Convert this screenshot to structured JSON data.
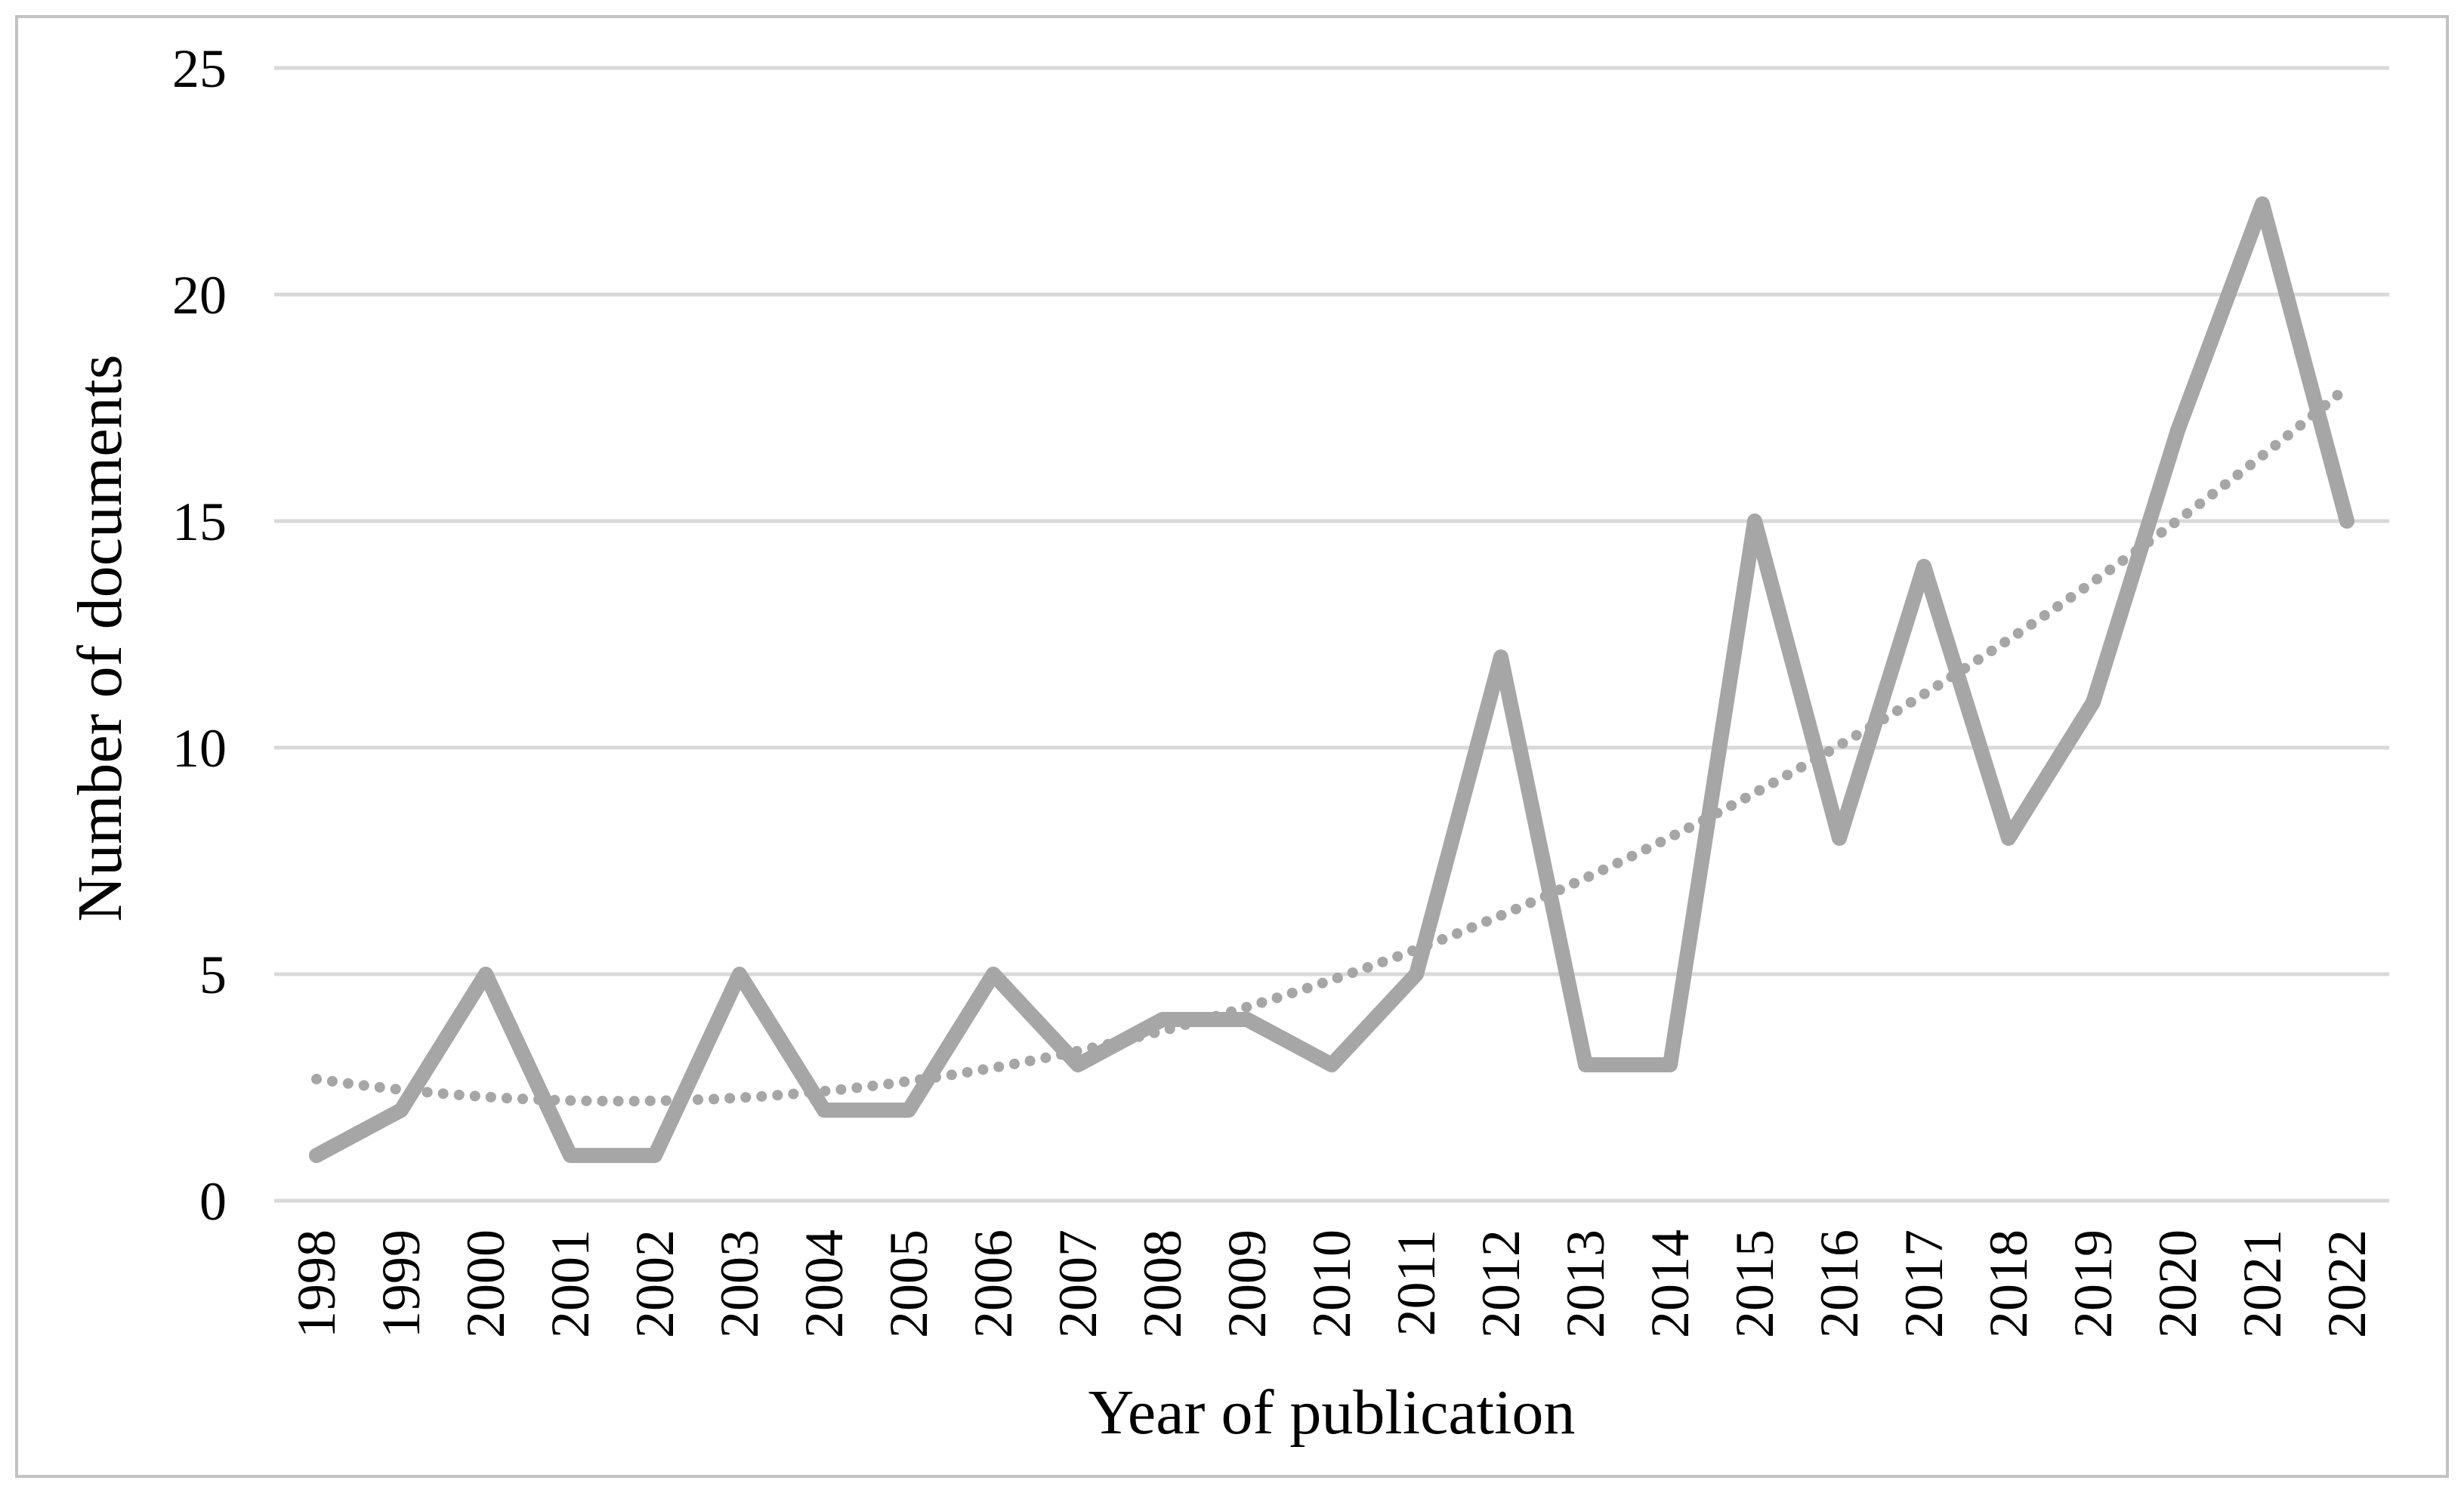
{
  "figure": {
    "background": "#ffffff",
    "border_color": "#c3c3c3",
    "y_axis_title": "Number of documents",
    "x_axis_title": "Year of publication"
  },
  "chart_data": {
    "type": "line",
    "title": "",
    "xlabel": "Year of publication",
    "ylabel": "Number of documents",
    "categories": [
      "1998",
      "1999",
      "2000",
      "2001",
      "2002",
      "2003",
      "2004",
      "2005",
      "2006",
      "2007",
      "2008",
      "2009",
      "2010",
      "2011",
      "2012",
      "2013",
      "2014",
      "2015",
      "2016",
      "2017",
      "2018",
      "2019",
      "2020",
      "2021",
      "2022"
    ],
    "series": [
      {
        "name": "Number of documents",
        "style": "solid",
        "color": "#a6a6a6",
        "values": [
          1,
          2,
          5,
          1,
          1,
          5,
          2,
          2,
          5,
          3,
          4,
          4,
          3,
          5,
          12,
          3,
          3,
          15,
          8,
          14,
          8,
          11,
          17,
          22,
          15
        ]
      },
      {
        "name": "Polynomial trendline",
        "style": "dotted",
        "color": "#a6a6a6",
        "values": [
          2.68,
          2.45,
          2.29,
          2.21,
          2.2,
          2.27,
          2.42,
          2.64,
          2.93,
          3.31,
          3.75,
          4.27,
          4.87,
          5.55,
          6.3,
          7.12,
          8.02,
          9.0,
          10.05,
          11.18,
          12.38,
          13.66,
          15.02,
          16.45,
          17.95
        ],
        "polynomial": {
          "a": 2.685,
          "b": -0.2714,
          "c": 0.03781
        }
      }
    ],
    "ylim": [
      0,
      25
    ],
    "yticks": [
      0,
      5,
      10,
      15,
      20,
      25
    ],
    "grid": true,
    "legend_position": "none",
    "colors": {
      "gridline": "#d9d9d9",
      "axis_line": "#d9d9d9",
      "series_line": "#a6a6a6",
      "trend_line": "#a6a6a6",
      "text": "#000000",
      "border": "#c3c3c3",
      "background": "#ffffff"
    }
  }
}
